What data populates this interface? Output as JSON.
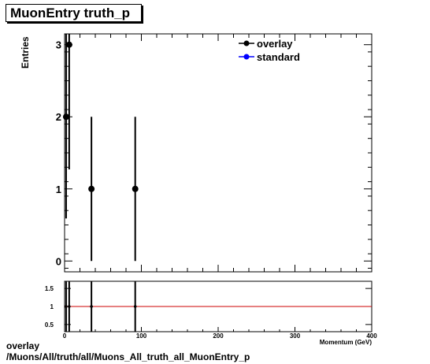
{
  "title": "MuonEntry truth_p",
  "footer": {
    "line1": "overlay",
    "line2": "/Muons/All/truth/all/Muons_All_truth_all_MuonEntry_p"
  },
  "chart_data": [
    {
      "type": "scatter",
      "ylabel": "Entries",
      "xlabel": "",
      "xlim": [
        0,
        400
      ],
      "ylim": [
        -0.15,
        3.15
      ],
      "yticks": [
        "0",
        "1",
        "2",
        "3"
      ],
      "legend_position": "top-right",
      "grid": false,
      "series": [
        {
          "name": "overlay",
          "color": "#000000",
          "points": [
            {
              "x": 2,
              "y": 2,
              "err": 1.41
            },
            {
              "x": 6,
              "y": 3,
              "err": 1.73
            },
            {
              "x": 35,
              "y": 1,
              "err": 1
            },
            {
              "x": 92,
              "y": 1,
              "err": 1
            }
          ]
        },
        {
          "name": "standard",
          "color": "#0000ff",
          "points": []
        }
      ]
    },
    {
      "type": "scatter",
      "xlabel": "Momentum (GeV)",
      "ylabel": "",
      "xlim": [
        0,
        400
      ],
      "ylim": [
        0.3,
        1.7
      ],
      "xticks": [
        "0",
        "100",
        "200",
        "300",
        "400"
      ],
      "yticks": [
        "0.5",
        "1",
        "1.5"
      ],
      "reference_line": {
        "y": 1,
        "color": "#cc0000"
      },
      "grid": false,
      "series": [
        {
          "name": "",
          "color": "#000000",
          "points": [
            {
              "x": 2,
              "y": 1
            },
            {
              "x": 6,
              "y": 1
            },
            {
              "x": 35,
              "y": 1
            },
            {
              "x": 92,
              "y": 1
            }
          ]
        }
      ]
    }
  ]
}
